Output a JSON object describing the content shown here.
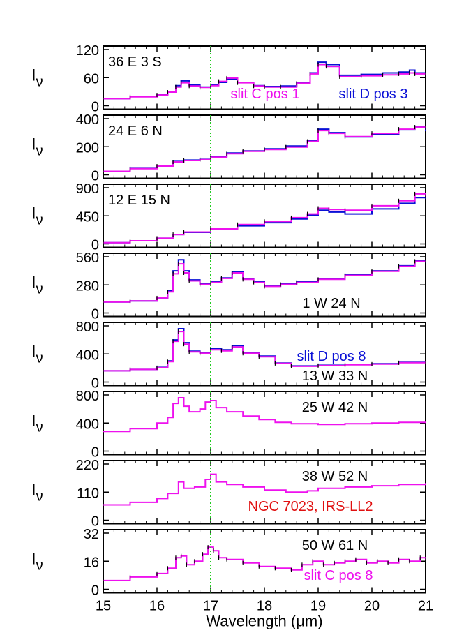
{
  "figure": {
    "xlabel": "Wavelength (μm)",
    "ylabel": "Iν",
    "x_tick_labels": [
      "15",
      "16",
      "17",
      "18",
      "19",
      "20",
      "21"
    ],
    "marker_line_x": 17.0,
    "colors": {
      "magenta": "#ee11ee",
      "blue": "#0a10d6",
      "green": "#22cc22",
      "red": "#e01010",
      "black": "#000000",
      "spectrum_magenta": "#ee11ee",
      "spectrum_blue": "#0a10d6",
      "marker_line": "#22cc22",
      "title_red": "#e01010"
    }
  },
  "chart_data": [
    {
      "type": "line",
      "panel_label": "36 E 3 S",
      "xlim": [
        15,
        21
      ],
      "ylim": [
        0,
        120
      ],
      "y_ticks": [
        0,
        60,
        120
      ],
      "y_tick_labels": [
        "0",
        "60",
        "120"
      ],
      "annotations": [
        {
          "text": "slit C pos 1",
          "color": "magenta"
        },
        {
          "text": "slit D pos 3",
          "color": "blue"
        }
      ],
      "series": [
        {
          "color": "blue",
          "x": [
            15.0,
            15.5,
            16.0,
            16.2,
            16.35,
            16.45,
            16.6,
            16.8,
            17.0,
            17.15,
            17.3,
            17.5,
            17.8,
            18.0,
            18.3,
            18.6,
            18.85,
            19.0,
            19.15,
            19.4,
            19.8,
            20.2,
            20.5,
            20.7,
            20.8,
            21.0
          ],
          "y": [
            15,
            20,
            24,
            30,
            43,
            53,
            44,
            40,
            44,
            50,
            57,
            50,
            43,
            41,
            42,
            50,
            70,
            93,
            88,
            65,
            67,
            70,
            72,
            76,
            70,
            68
          ]
        },
        {
          "color": "magenta",
          "x": [
            15.0,
            15.5,
            16.0,
            16.2,
            16.35,
            16.45,
            16.6,
            16.8,
            17.0,
            17.15,
            17.3,
            17.5,
            17.8,
            18.0,
            18.3,
            18.6,
            18.85,
            19.0,
            19.15,
            19.4,
            19.8,
            20.2,
            20.5,
            20.7,
            20.8,
            21.0
          ],
          "y": [
            15,
            19,
            23,
            29,
            40,
            49,
            42,
            39,
            43,
            52,
            59,
            49,
            42,
            40,
            40,
            48,
            68,
            88,
            84,
            62,
            64,
            66,
            68,
            70,
            68,
            67
          ]
        }
      ]
    },
    {
      "type": "line",
      "panel_label": "24 E 6 N",
      "xlim": [
        15,
        21
      ],
      "ylim": [
        0,
        400
      ],
      "y_ticks": [
        0,
        200,
        400
      ],
      "y_tick_labels": [
        "0",
        "200",
        "400"
      ],
      "annotations": [],
      "series": [
        {
          "color": "blue",
          "x": [
            15.0,
            15.5,
            16.0,
            16.3,
            16.5,
            16.8,
            17.0,
            17.3,
            17.6,
            18.0,
            18.4,
            18.8,
            19.0,
            19.2,
            19.5,
            20.0,
            20.5,
            20.8,
            21.0
          ],
          "y": [
            25,
            45,
            65,
            95,
            105,
            110,
            130,
            155,
            170,
            185,
            205,
            245,
            325,
            300,
            270,
            290,
            320,
            345,
            310
          ]
        },
        {
          "color": "magenta",
          "x": [
            15.0,
            15.5,
            16.0,
            16.3,
            16.5,
            16.8,
            17.0,
            17.3,
            17.6,
            18.0,
            18.4,
            18.8,
            19.0,
            19.2,
            19.5,
            20.0,
            20.5,
            20.8,
            21.0
          ],
          "y": [
            25,
            43,
            62,
            92,
            102,
            108,
            125,
            150,
            168,
            180,
            198,
            238,
            315,
            295,
            272,
            295,
            325,
            340,
            330
          ]
        }
      ]
    },
    {
      "type": "line",
      "panel_label": "12 E 15 N",
      "xlim": [
        15,
        21
      ],
      "ylim": [
        0,
        900
      ],
      "y_ticks": [
        0,
        450,
        900
      ],
      "y_tick_labels": [
        "0",
        "450",
        "900"
      ],
      "annotations": [],
      "series": [
        {
          "color": "blue",
          "x": [
            15.0,
            15.5,
            16.0,
            16.3,
            16.5,
            17.0,
            17.5,
            18.0,
            18.5,
            18.8,
            19.0,
            19.2,
            19.5,
            20.0,
            20.5,
            20.8,
            21.0
          ],
          "y": [
            20,
            50,
            90,
            150,
            185,
            230,
            290,
            340,
            400,
            460,
            540,
            510,
            480,
            560,
            650,
            740,
            720
          ]
        },
        {
          "color": "magenta",
          "x": [
            15.0,
            15.5,
            16.0,
            16.3,
            16.5,
            17.0,
            17.5,
            18.0,
            18.5,
            18.8,
            19.0,
            19.2,
            19.5,
            20.0,
            20.5,
            20.8,
            21.0
          ],
          "y": [
            20,
            50,
            90,
            150,
            190,
            240,
            310,
            360,
            420,
            480,
            570,
            550,
            540,
            610,
            690,
            800,
            760
          ]
        }
      ]
    },
    {
      "type": "line",
      "panel_label": "1 W 24 N",
      "xlim": [
        15,
        21
      ],
      "ylim": [
        0,
        560
      ],
      "y_ticks": [
        0,
        280,
        560
      ],
      "y_tick_labels": [
        "0",
        "280",
        "560"
      ],
      "annotations": [],
      "series": [
        {
          "color": "blue",
          "x": [
            15.0,
            15.5,
            16.0,
            16.2,
            16.3,
            16.4,
            16.5,
            16.6,
            16.8,
            17.0,
            17.2,
            17.4,
            17.6,
            17.8,
            18.0,
            18.3,
            18.6,
            19.0,
            19.5,
            20.0,
            20.5,
            20.8,
            21.0
          ],
          "y": [
            110,
            120,
            150,
            220,
            420,
            530,
            420,
            330,
            290,
            310,
            350,
            410,
            340,
            310,
            270,
            290,
            310,
            340,
            380,
            420,
            470,
            520,
            500
          ]
        },
        {
          "color": "magenta",
          "x": [
            15.0,
            15.5,
            16.0,
            16.2,
            16.3,
            16.4,
            16.5,
            16.6,
            16.8,
            17.0,
            17.2,
            17.4,
            17.6,
            17.8,
            18.0,
            18.3,
            18.6,
            19.0,
            19.5,
            20.0,
            20.5,
            20.8,
            21.0
          ],
          "y": [
            110,
            120,
            150,
            210,
            390,
            490,
            400,
            320,
            285,
            305,
            345,
            400,
            335,
            305,
            265,
            285,
            305,
            335,
            375,
            415,
            465,
            515,
            505
          ]
        }
      ]
    },
    {
      "type": "line",
      "panel_label": "13 W 33 N",
      "xlim": [
        15,
        21
      ],
      "ylim": [
        0,
        800
      ],
      "y_ticks": [
        0,
        400,
        800
      ],
      "y_tick_labels": [
        "0",
        "400",
        "800"
      ],
      "annotations": [
        {
          "text": "slit D pos 8",
          "color": "blue"
        }
      ],
      "series": [
        {
          "color": "blue",
          "x": [
            15.0,
            15.5,
            16.0,
            16.2,
            16.3,
            16.4,
            16.5,
            16.6,
            16.8,
            17.0,
            17.2,
            17.4,
            17.6,
            17.9,
            18.2,
            18.5,
            19.0,
            19.5,
            20.0,
            20.5,
            21.0
          ],
          "y": [
            160,
            180,
            210,
            300,
            600,
            760,
            560,
            440,
            420,
            480,
            460,
            520,
            420,
            370,
            270,
            230,
            240,
            250,
            260,
            280,
            300
          ]
        },
        {
          "color": "magenta",
          "x": [
            15.0,
            15.5,
            16.0,
            16.2,
            16.3,
            16.4,
            16.5,
            16.6,
            16.8,
            17.0,
            17.2,
            17.4,
            17.6,
            17.9,
            18.2,
            18.5,
            19.0,
            19.5,
            20.0,
            20.5,
            21.0
          ],
          "y": [
            160,
            180,
            205,
            290,
            580,
            720,
            540,
            430,
            410,
            460,
            445,
            500,
            410,
            360,
            265,
            225,
            235,
            245,
            255,
            275,
            295
          ]
        }
      ]
    },
    {
      "type": "line",
      "panel_label": "25 W 42 N",
      "xlim": [
        15,
        21
      ],
      "ylim": [
        0,
        800
      ],
      "y_ticks": [
        0,
        400,
        800
      ],
      "y_tick_labels": [
        "0",
        "400",
        "800"
      ],
      "annotations": [],
      "series": [
        {
          "color": "magenta",
          "x": [
            15.0,
            15.5,
            16.0,
            16.2,
            16.3,
            16.4,
            16.5,
            16.6,
            16.8,
            16.9,
            17.0,
            17.1,
            17.3,
            17.6,
            17.9,
            18.2,
            18.5,
            19.0,
            19.5,
            20.0,
            20.5,
            21.0
          ],
          "y": [
            280,
            320,
            400,
            480,
            680,
            760,
            640,
            560,
            600,
            700,
            720,
            620,
            560,
            500,
            450,
            410,
            390,
            380,
            390,
            400,
            410,
            420
          ]
        }
      ]
    },
    {
      "type": "line",
      "panel_label": "38 W 52 N",
      "xlim": [
        15,
        21
      ],
      "ylim": [
        0,
        220
      ],
      "y_ticks": [
        0,
        110,
        220
      ],
      "y_tick_labels": [
        "0",
        "110",
        "220"
      ],
      "annotations": [
        {
          "text": "NGC 7023, IRS-LL2",
          "color": "red"
        }
      ],
      "series": [
        {
          "color": "magenta",
          "x": [
            15.0,
            15.5,
            16.0,
            16.2,
            16.4,
            16.5,
            16.7,
            16.9,
            17.0,
            17.1,
            17.3,
            17.6,
            18.0,
            18.4,
            18.8,
            19.0,
            19.5,
            20.0,
            20.5,
            21.0
          ],
          "y": [
            60,
            70,
            85,
            105,
            150,
            125,
            130,
            160,
            180,
            150,
            140,
            130,
            118,
            110,
            115,
            125,
            130,
            135,
            140,
            145
          ]
        }
      ]
    },
    {
      "type": "line",
      "panel_label": "50 W 61 N",
      "xlim": [
        15,
        21
      ],
      "ylim": [
        0,
        32
      ],
      "y_ticks": [
        0,
        16,
        32
      ],
      "y_tick_labels": [
        "0",
        "16",
        "32"
      ],
      "annotations": [
        {
          "text": "slit C pos 8",
          "color": "magenta"
        }
      ],
      "series": [
        {
          "color": "magenta",
          "x": [
            15.0,
            15.5,
            16.0,
            16.2,
            16.35,
            16.45,
            16.55,
            16.7,
            16.85,
            16.95,
            17.05,
            17.15,
            17.3,
            17.6,
            17.9,
            18.2,
            18.5,
            18.7,
            18.9,
            19.1,
            19.3,
            19.5,
            19.7,
            19.9,
            20.1,
            20.3,
            20.5,
            20.7,
            20.9,
            21.0
          ],
          "y": [
            5,
            7,
            9,
            12,
            18,
            19,
            14,
            16,
            20,
            24,
            22,
            18,
            17,
            15,
            13,
            12,
            11,
            14,
            16,
            14,
            15,
            16,
            17,
            15,
            16,
            15,
            17,
            16,
            18,
            17
          ]
        }
      ]
    }
  ]
}
